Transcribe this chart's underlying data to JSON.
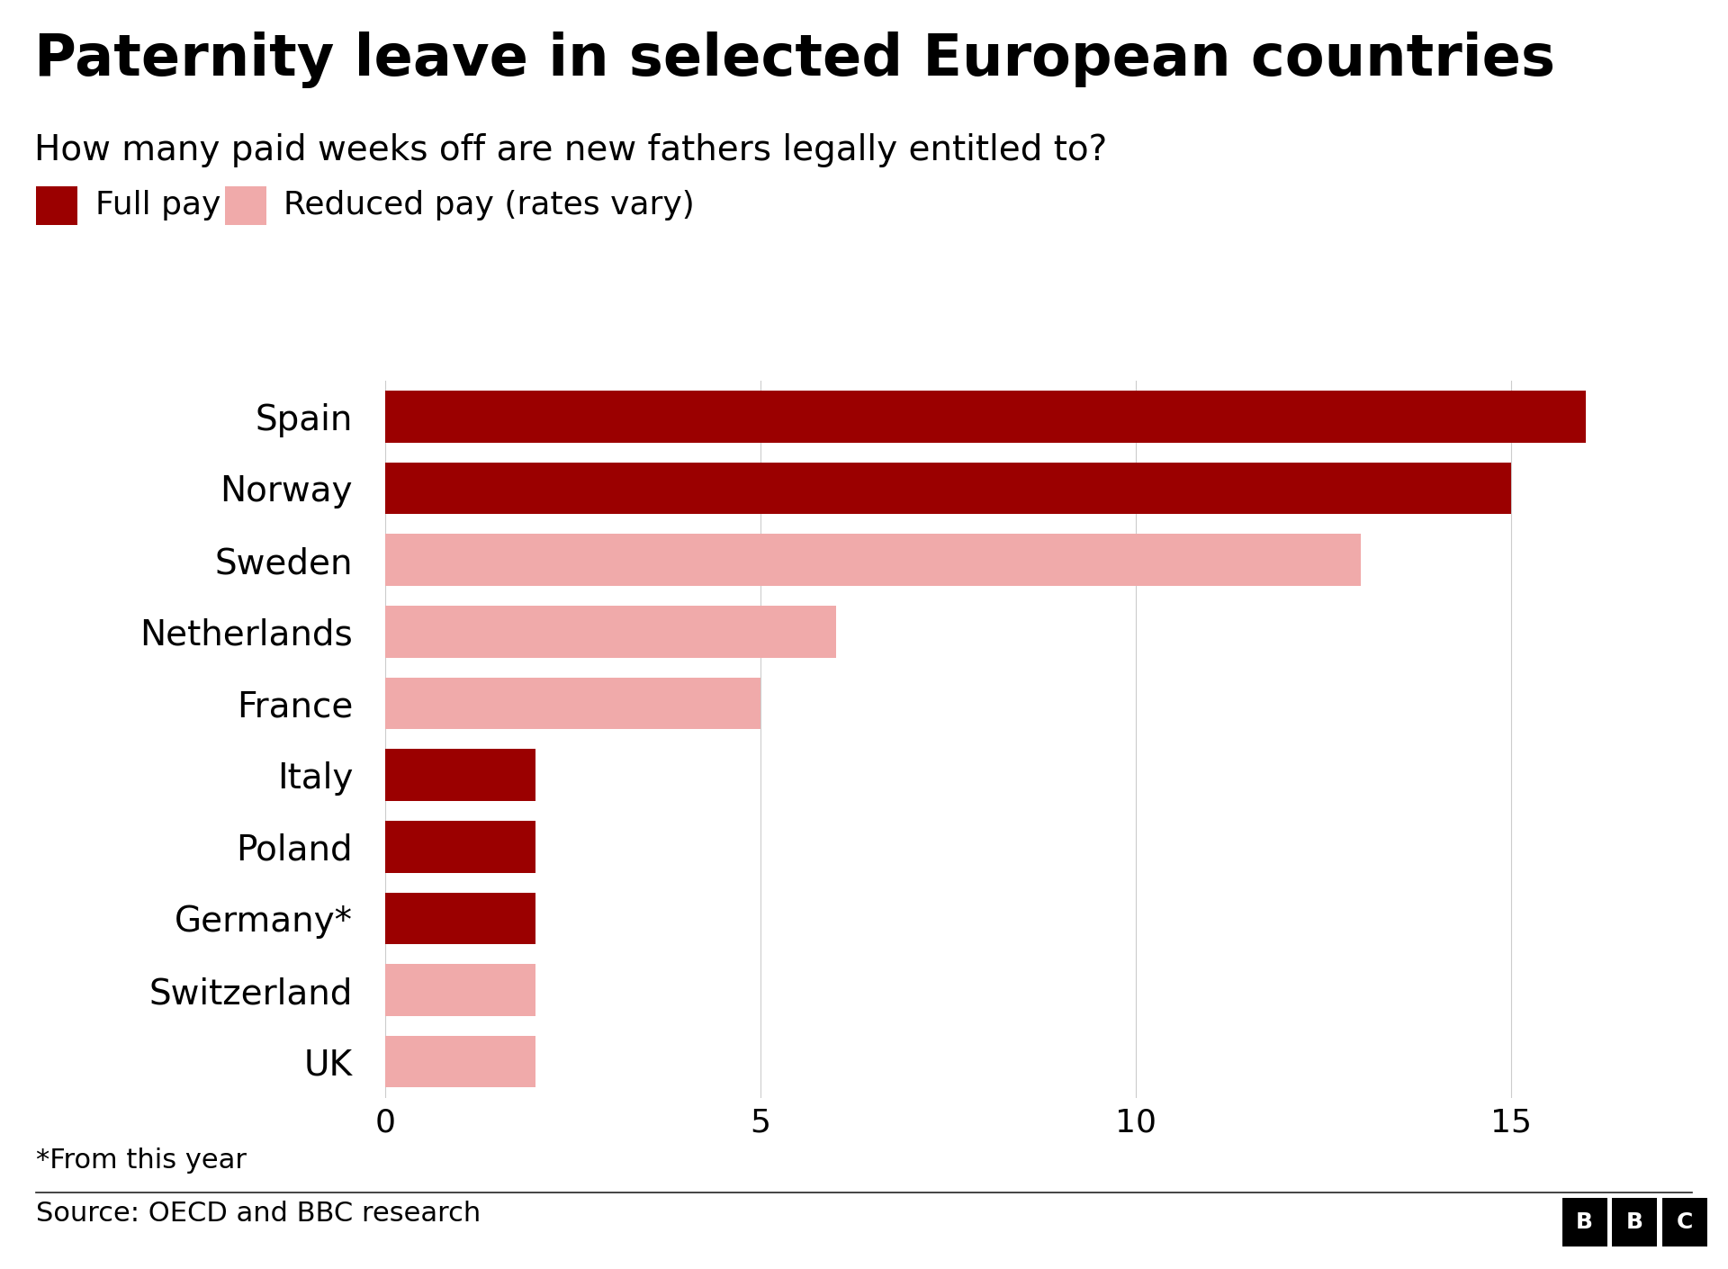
{
  "title": "Paternity leave in selected European countries",
  "subtitle": "How many paid weeks off are new fathers legally entitled to?",
  "countries": [
    "Spain",
    "Norway",
    "Sweden",
    "Netherlands",
    "France",
    "Italy",
    "Poland",
    "Germany*",
    "Switzerland",
    "UK"
  ],
  "values": [
    16,
    15,
    13,
    6,
    5,
    2,
    2,
    2,
    2,
    2
  ],
  "pay_type": [
    "full",
    "full",
    "reduced",
    "reduced",
    "reduced",
    "full",
    "full",
    "full",
    "reduced",
    "reduced"
  ],
  "full_pay_color": "#9B0000",
  "reduced_pay_color": "#F0AAAA",
  "background_color": "#ffffff",
  "title_fontsize": 46,
  "subtitle_fontsize": 28,
  "label_fontsize": 28,
  "tick_fontsize": 26,
  "legend_fontsize": 26,
  "source_text": "Source: OECD and BBC research",
  "footnote_text": "*From this year",
  "xlim": [
    -0.3,
    17.2
  ],
  "xticks": [
    0,
    5,
    10,
    15
  ],
  "bar_height": 0.72
}
